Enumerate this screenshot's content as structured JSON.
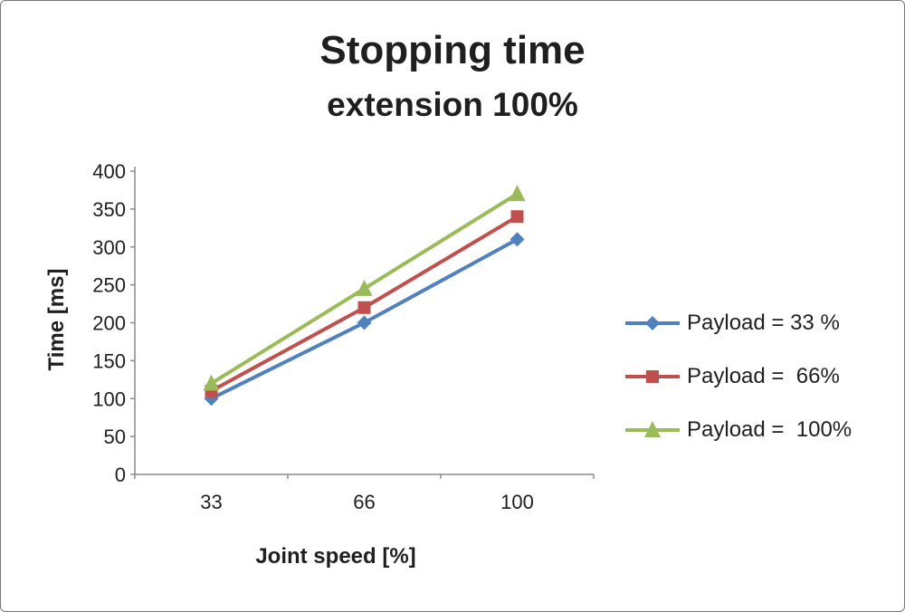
{
  "chart_data": {
    "type": "line",
    "title": "Stopping time",
    "subtitle": "extension 100%",
    "xlabel": "Joint speed [%]",
    "ylabel": "Time [ms]",
    "categories": [
      "33",
      "66",
      "100"
    ],
    "ylim": [
      0,
      400
    ],
    "ytick_step": 50,
    "grid": false,
    "legend_position": "right",
    "series": [
      {
        "name": "Payload = 33 %",
        "values": [
          100,
          200,
          310
        ],
        "color": "#4f81bd",
        "marker": "diamond"
      },
      {
        "name": "Payload =  66%",
        "values": [
          110,
          220,
          340
        ],
        "color": "#c0504d",
        "marker": "square"
      },
      {
        "name": "Payload =  100%",
        "values": [
          120,
          245,
          370
        ],
        "color": "#9bbb59",
        "marker": "triangle"
      }
    ]
  }
}
